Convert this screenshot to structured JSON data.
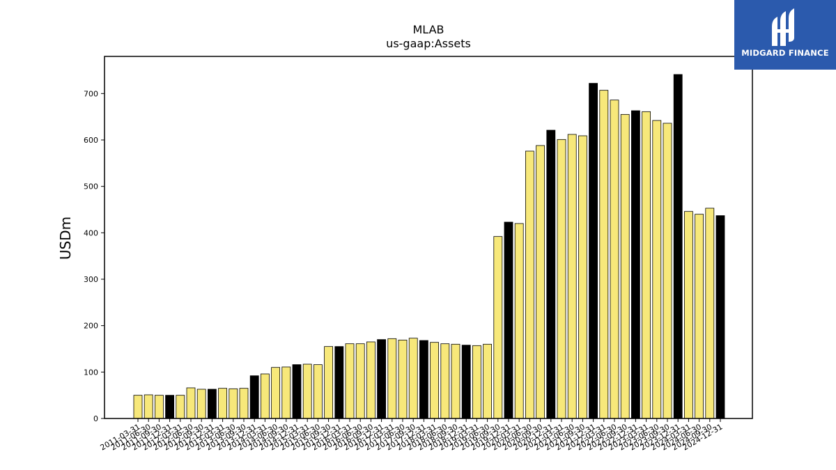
{
  "brand": {
    "name": "MIDGARD FINANCE",
    "bg_color": "#2b5aad",
    "icon": "midgard-logo-icon"
  },
  "chart_data": {
    "type": "bar",
    "title": "MLAB",
    "subtitle": "us-gaap:Assets",
    "ylabel": "USDm",
    "xlabel": "",
    "ylim": [
      0,
      780
    ],
    "yticks": [
      0,
      100,
      200,
      300,
      400,
      500,
      600,
      700
    ],
    "grid": false,
    "colors": {
      "quarter": "#f7e87a",
      "year_end": "#000000",
      "edge": "#000000"
    },
    "categories": [
      "2011-03-31",
      "2011-06-30",
      "2011-09-30",
      "2011-12-31",
      "2012-03-31",
      "2012-06-30",
      "2012-09-30",
      "2012-12-31",
      "2013-03-31",
      "2013-06-30",
      "2013-09-30",
      "2013-12-31",
      "2014-03-31",
      "2014-06-30",
      "2014-09-30",
      "2014-12-31",
      "2015-03-31",
      "2015-06-30",
      "2015-09-30",
      "2015-12-31",
      "2016-03-31",
      "2016-06-30",
      "2016-09-30",
      "2016-12-31",
      "2017-03-31",
      "2017-06-30",
      "2017-09-30",
      "2017-12-31",
      "2018-03-31",
      "2018-06-30",
      "2018-09-30",
      "2018-12-31",
      "2019-03-31",
      "2019-06-30",
      "2019-09-30",
      "2019-12-31",
      "2020-03-31",
      "2020-06-30",
      "2020-09-30",
      "2020-12-31",
      "2021-03-31",
      "2021-06-30",
      "2021-09-30",
      "2021-12-31",
      "2022-03-31",
      "2022-06-30",
      "2022-09-30",
      "2022-12-31",
      "2023-03-31",
      "2023-06-30",
      "2023-09-30",
      "2023-12-31",
      "2024-03-31",
      "2024-06-30",
      "2024-09-30",
      "2024-12-31"
    ],
    "tick_labels": [
      "2011-03-31",
      "2011-06-30",
      "2011-09-30",
      "2011-12-31",
      "2012-03-31",
      "2012-06-30",
      "2012-09-30",
      "2012-12-31",
      "2013-03-31",
      "2013-06-30",
      "2013-09-30",
      "2013-12-31",
      "2014-03-31",
      "2014-06-30",
      "2014-09-30",
      "2014-12-31",
      "2015-03-31",
      "2015-06-30",
      "2015-09-30",
      "2015-12-31",
      "2016-03-31",
      "2016-06-30",
      "2016-09-30",
      "2016-12-31",
      "2017-03-31",
      "2017-06-30",
      "2017-09-30",
      "2017-12-31",
      "2018-03-31",
      "2018-06-30",
      "2018-09-30",
      "2018-12-31",
      "2019-03-31",
      "2019-06-30",
      "2019-09-30",
      "2019-12-31",
      "2020-03-31",
      "2020-06-30",
      "2020-09-30",
      "2020-12-31",
      "2021-03-31",
      "2021-06-30",
      "2021-09-30",
      "2021-12-31",
      "2022-03-31",
      "2022-06-30",
      "2022-09-30",
      "2022-12-31",
      "2023-03-31",
      "2023-06-30",
      "2023-09-30",
      "2023-12-31",
      "2024-03-31",
      "2024-06-30",
      "2024-09-30",
      "2024-12-31"
    ],
    "values": [
      50,
      51,
      50,
      50,
      50,
      66,
      63,
      63,
      65,
      64,
      65,
      92,
      96,
      110,
      111,
      116,
      117,
      116,
      155,
      155,
      161,
      161,
      165,
      170,
      172,
      169,
      173,
      168,
      164,
      161,
      160,
      158,
      157,
      160,
      392,
      423,
      420,
      576,
      588,
      621,
      601,
      612,
      609,
      722,
      707,
      686,
      655,
      663,
      661,
      642,
      636,
      741,
      446,
      440,
      453,
      437
    ],
    "year_end_flags": [
      false,
      false,
      false,
      true,
      false,
      false,
      false,
      true,
      false,
      false,
      false,
      true,
      false,
      false,
      false,
      true,
      false,
      false,
      false,
      true,
      false,
      false,
      false,
      true,
      false,
      false,
      false,
      true,
      false,
      false,
      false,
      true,
      false,
      false,
      false,
      true,
      false,
      false,
      false,
      true,
      false,
      false,
      false,
      true,
      false,
      false,
      false,
      true,
      false,
      false,
      false,
      true,
      false,
      false,
      false,
      true
    ]
  }
}
